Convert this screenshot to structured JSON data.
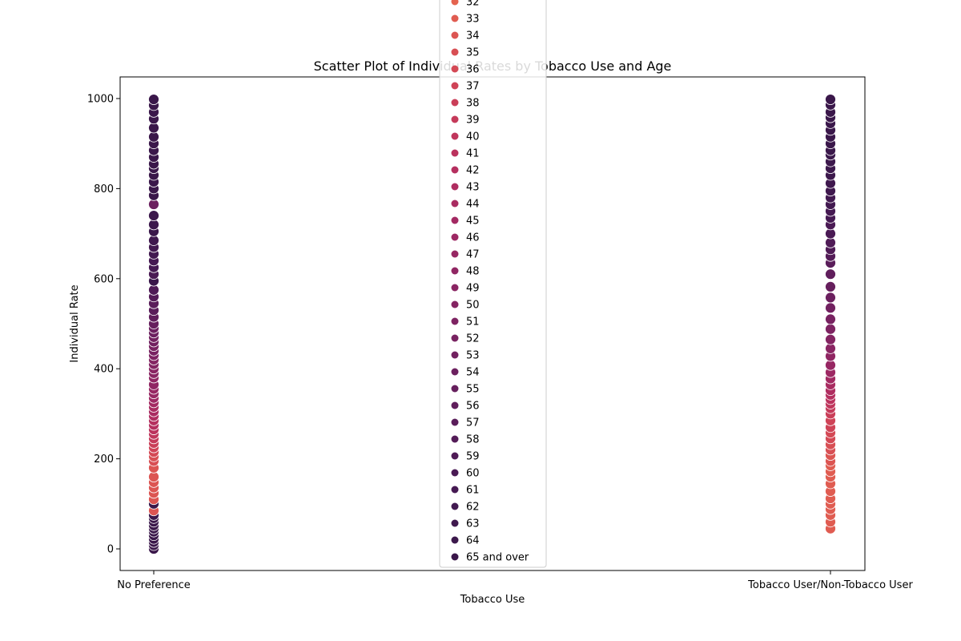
{
  "chart_data": {
    "type": "scatter",
    "title": "Scatter Plot of Individual Rates by Tobacco Use and Age",
    "xlabel": "Tobacco Use",
    "ylabel": "Individual Rate",
    "categories": [
      "No Preference",
      "Tobacco User/Non-Tobacco User"
    ],
    "ylim": [
      -48,
      1048
    ],
    "yticks": [
      0,
      200,
      400,
      600,
      800,
      1000
    ],
    "grid": false,
    "legend_placement": "upper-center",
    "legend_entries": [
      "32",
      "33",
      "34",
      "35",
      "36",
      "37",
      "38",
      "39",
      "40",
      "41",
      "42",
      "43",
      "44",
      "45",
      "46",
      "47",
      "48",
      "49",
      "50",
      "51",
      "52",
      "53",
      "54",
      "55",
      "56",
      "57",
      "58",
      "59",
      "60",
      "61",
      "62",
      "63",
      "64",
      "65 and over"
    ],
    "legend_colors": [
      "#e4634f",
      "#e05c51",
      "#dc5552",
      "#d84f54",
      "#d44955",
      "#cf4357",
      "#ca3e58",
      "#c53a5a",
      "#c0365c",
      "#bb325d",
      "#b52f5f",
      "#af2d60",
      "#a92b61",
      "#a32962",
      "#9d2863",
      "#972763",
      "#902663",
      "#8a2563",
      "#842462",
      "#7e2362",
      "#782261",
      "#722160",
      "#6c205f",
      "#661f5d",
      "#601e5c",
      "#5a1d5a",
      "#541c58",
      "#4f1b56",
      "#4a1a54",
      "#451952",
      "#421950",
      "#3f184e",
      "#3c184c",
      "#3a174a"
    ],
    "series": [
      {
        "x": "No Preference",
        "y": [
          0,
          8,
          15,
          22,
          30,
          38,
          45,
          52,
          60,
          68,
          75,
          85,
          100,
          110,
          124,
          136,
          148,
          160,
          180,
          195,
          205,
          215,
          225,
          235,
          245,
          255,
          265,
          275,
          285,
          295,
          305,
          315,
          325,
          335,
          345,
          355,
          365,
          380,
          390,
          400,
          410,
          420,
          430,
          440,
          450,
          460,
          470,
          480,
          490,
          500,
          515,
          530,
          545,
          560,
          575,
          595,
          610,
          625,
          640,
          655,
          670,
          685,
          705,
          720,
          740,
          765,
          785,
          800,
          815,
          830,
          845,
          855,
          870,
          885,
          900,
          915,
          935,
          955,
          970,
          985,
          998
        ],
        "age_index": [
          33,
          33,
          33,
          33,
          33,
          33,
          33,
          33,
          33,
          33,
          33,
          2,
          33,
          2,
          2,
          2,
          2,
          2,
          2,
          3,
          3,
          4,
          5,
          6,
          7,
          8,
          9,
          10,
          10,
          11,
          12,
          12,
          13,
          14,
          15,
          15,
          16,
          16,
          17,
          17,
          18,
          18,
          19,
          20,
          20,
          21,
          21,
          22,
          22,
          23,
          24,
          25,
          25,
          26,
          27,
          33,
          28,
          29,
          29,
          30,
          30,
          31,
          33,
          32,
          32,
          22,
          33,
          33,
          33,
          33,
          33,
          33,
          33,
          33,
          33,
          33,
          33,
          33,
          33,
          33,
          33
        ]
      },
      {
        "x": "Tobacco User/Non-Tobacco User",
        "y": [
          45,
          60,
          75,
          88,
          100,
          112,
          128,
          145,
          160,
          172,
          185,
          195,
          208,
          220,
          232,
          245,
          258,
          270,
          285,
          300,
          312,
          322,
          332,
          342,
          352,
          365,
          378,
          392,
          408,
          428,
          445,
          465,
          488,
          510,
          535,
          558,
          582,
          610,
          635,
          650,
          665,
          680,
          700,
          720,
          735,
          750,
          765,
          780,
          795,
          812,
          830,
          845,
          860,
          875,
          885,
          900,
          915,
          930,
          945,
          958,
          970,
          986,
          998
        ],
        "age_index": [
          1,
          1,
          1,
          1,
          1,
          1,
          1,
          1,
          1,
          1,
          1,
          2,
          2,
          3,
          3,
          4,
          4,
          5,
          5,
          6,
          7,
          8,
          9,
          10,
          11,
          12,
          13,
          14,
          15,
          16,
          17,
          18,
          19,
          20,
          21,
          22,
          23,
          24,
          25,
          26,
          27,
          27,
          28,
          28,
          29,
          29,
          30,
          30,
          31,
          31,
          32,
          32,
          32,
          33,
          33,
          33,
          33,
          33,
          33,
          33,
          33,
          33,
          33
        ]
      }
    ]
  }
}
